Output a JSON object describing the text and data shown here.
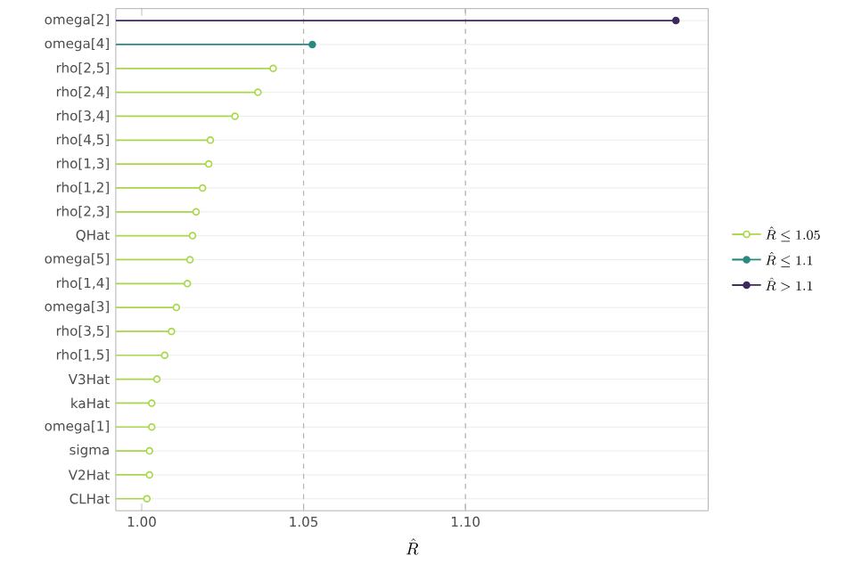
{
  "chart_data": {
    "type": "lollipop",
    "orientation": "horizontal",
    "categories": [
      "omega[2]",
      "omega[4]",
      "rho[2,5]",
      "rho[2,4]",
      "rho[3,4]",
      "rho[4,5]",
      "rho[1,3]",
      "rho[1,2]",
      "rho[2,3]",
      "QHat",
      "omega[5]",
      "rho[1,4]",
      "omega[3]",
      "rho[3,5]",
      "rho[1,5]",
      "V3Hat",
      "kaHat",
      "omega[1]",
      "sigma",
      "V2Hat",
      "CLHat"
    ],
    "series": [
      {
        "name": "\\hat{R} \\leq 1.05",
        "color": "#a8d84a",
        "marker": "circle-open",
        "values": [
          null,
          null,
          1.0406,
          1.0359,
          1.0288,
          1.0212,
          1.0207,
          1.0188,
          1.0168,
          1.0157,
          1.0149,
          1.0141,
          1.0107,
          1.0092,
          1.0071,
          1.0047,
          1.0031,
          1.0031,
          1.0024,
          1.0024,
          1.0016
        ]
      },
      {
        "name": "\\hat{R} \\leq 1.1",
        "color": "#2a8a80",
        "marker": "circle",
        "values": [
          null,
          1.0527,
          null,
          null,
          null,
          null,
          null,
          null,
          null,
          null,
          null,
          null,
          null,
          null,
          null,
          null,
          null,
          null,
          null,
          null,
          null
        ]
      },
      {
        "name": "\\hat{R} > 1.1",
        "color": "#3d2a5c",
        "marker": "circle",
        "values": [
          1.165,
          null,
          null,
          null,
          null,
          null,
          null,
          null,
          null,
          null,
          null,
          null,
          null,
          null,
          null,
          null,
          null,
          null,
          null,
          null,
          null
        ]
      }
    ],
    "xlabel": "\\hat{R}",
    "xlim": [
      0.992,
      1.175
    ],
    "xticks": [
      {
        "value": 1.0,
        "label": "1.00"
      },
      {
        "value": 1.05,
        "label": "1.05"
      },
      {
        "value": 1.1,
        "label": "1.10"
      }
    ],
    "ref_lines": [
      {
        "axis": "x",
        "value": 1.05,
        "color": "#b4b4b4",
        "line_style": "dashed"
      },
      {
        "axis": "x",
        "value": 1.1,
        "color": "#b4b4b4",
        "line_style": "dashed"
      }
    ],
    "grid": "y",
    "legend": "right"
  }
}
